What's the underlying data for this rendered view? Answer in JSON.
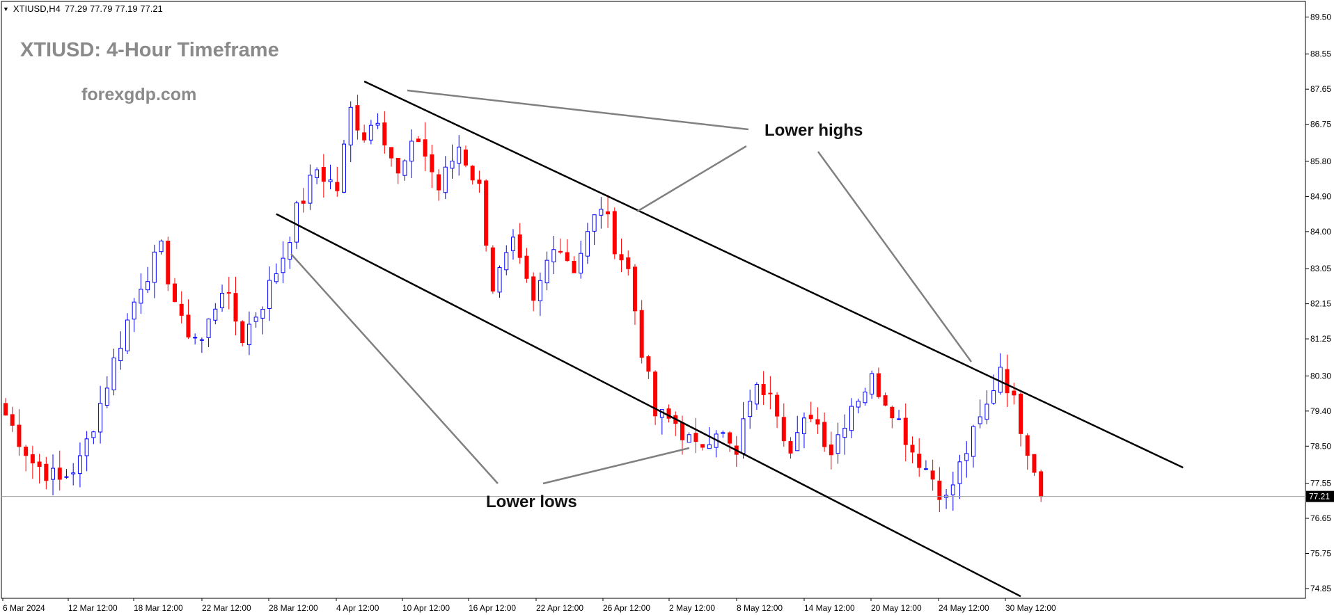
{
  "header": {
    "menu_icon": "triangle-down-icon",
    "symbol_tf": "XTIUSD,H4",
    "ohlc": "77.29 77.79 77.19 77.21"
  },
  "title": "XTIUSD: 4-Hour Timeframe",
  "watermark": "forexgdp.com",
  "annotations": {
    "lower_highs": "Lower highs",
    "lower_lows": "Lower lows"
  },
  "colors": {
    "bull": "#0000ff",
    "bear": "#ff0000",
    "channel": "#000000",
    "pointer": "#808080",
    "price_line": "#a0a0a0",
    "price_tag_bg": "#000000",
    "price_tag_text": "#ffffff"
  },
  "chart_data": {
    "type": "candlestick",
    "symbol": "XTIUSD",
    "timeframe": "H4",
    "current_price": 77.21,
    "y_ticks": [
      89.5,
      88.55,
      87.65,
      86.75,
      85.8,
      84.9,
      84.0,
      83.05,
      82.15,
      81.25,
      80.3,
      79.4,
      78.5,
      77.55,
      76.65,
      75.75,
      74.85
    ],
    "ylim": [
      74.6,
      89.9
    ],
    "x_ticks": [
      "6 Mar 2024",
      "12 Mar 12:00",
      "18 Mar 12:00",
      "22 Mar 12:00",
      "28 Mar 12:00",
      "4 Apr 12:00",
      "10 Apr 12:00",
      "16 Apr 12:00",
      "22 Apr 12:00",
      "26 Apr 12:00",
      "2 May 12:00",
      "8 May 12:00",
      "14 May 12:00",
      "20 May 12:00",
      "24 May 12:00",
      "30 May 12:00"
    ],
    "price_path": [
      [
        0,
        79.3
      ],
      [
        4,
        78.1
      ],
      [
        8,
        77.6
      ],
      [
        11,
        78.1
      ],
      [
        14,
        79.6
      ],
      [
        17,
        81.2
      ],
      [
        20,
        82.7
      ],
      [
        23,
        83.5
      ],
      [
        26,
        81.6
      ],
      [
        29,
        81.2
      ],
      [
        32,
        82.6
      ],
      [
        35,
        81.3
      ],
      [
        38,
        82.2
      ],
      [
        41,
        83.4
      ],
      [
        43,
        84.5
      ],
      [
        46,
        85.6
      ],
      [
        49,
        85.1
      ],
      [
        51,
        87.1
      ],
      [
        53,
        86.5
      ],
      [
        55,
        87.0
      ],
      [
        58,
        85.4
      ],
      [
        61,
        86.4
      ],
      [
        64,
        85.1
      ],
      [
        67,
        86.2
      ],
      [
        70,
        85.1
      ],
      [
        72,
        82.6
      ],
      [
        75,
        83.6
      ],
      [
        78,
        82.1
      ],
      [
        81,
        83.8
      ],
      [
        84,
        83.1
      ],
      [
        88,
        84.7
      ],
      [
        90,
        83.7
      ],
      [
        92,
        83.0
      ],
      [
        94,
        81.0
      ],
      [
        96,
        79.3
      ],
      [
        99,
        79.1
      ],
      [
        102,
        78.4
      ],
      [
        105,
        79.0
      ],
      [
        108,
        78.2
      ],
      [
        110,
        79.8
      ],
      [
        113,
        80.1
      ],
      [
        116,
        78.3
      ],
      [
        119,
        79.4
      ],
      [
        122,
        78.4
      ],
      [
        125,
        79.6
      ],
      [
        128,
        80.2
      ],
      [
        131,
        79.5
      ],
      [
        134,
        78.4
      ],
      [
        137,
        77.7
      ],
      [
        139,
        77.1
      ],
      [
        142,
        78.4
      ],
      [
        145,
        79.5
      ],
      [
        147,
        80.6
      ],
      [
        149,
        79.6
      ],
      [
        151,
        78.5
      ],
      [
        153,
        77.5
      ]
    ],
    "trendlines": [
      {
        "name": "upper-channel",
        "from": [
          53,
          87.85
        ],
        "to": [
          174,
          77.95
        ]
      },
      {
        "name": "lower-channel",
        "from": [
          40,
          84.45
        ],
        "to": [
          150,
          74.65
        ]
      }
    ]
  }
}
